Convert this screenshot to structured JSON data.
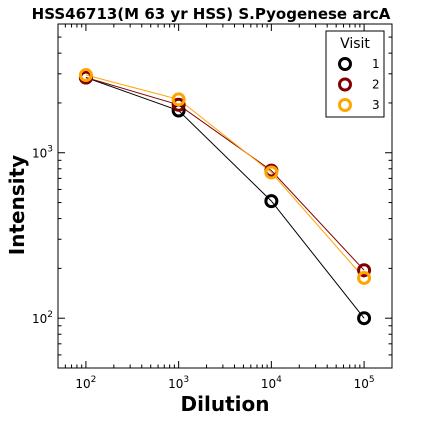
{
  "chart_data": {
    "type": "line",
    "title": "HSS46713(M 63 yr HSS) S.Pyogenese arcA",
    "xlabel": "Dilution",
    "ylabel": "Intensity",
    "xscale": "log",
    "yscale": "log",
    "xlim": [
      50,
      200000
    ],
    "ylim": [
      50,
      6000
    ],
    "x": [
      100,
      1000,
      10000,
      100000
    ],
    "xticks": [
      {
        "value": 100,
        "base": "10",
        "exp": "2"
      },
      {
        "value": 1000,
        "base": "10",
        "exp": "3"
      },
      {
        "value": 10000,
        "base": "10",
        "exp": "4"
      },
      {
        "value": 100000,
        "base": "10",
        "exp": "5"
      }
    ],
    "yticks": [
      {
        "value": 100,
        "base": "10",
        "exp": "2"
      },
      {
        "value": 1000,
        "base": "10",
        "exp": "3"
      }
    ],
    "legend": {
      "title": "Visit",
      "position": "top-right"
    },
    "grid": false,
    "series": [
      {
        "name": "1",
        "color": "#000000",
        "values": [
          2850,
          1800,
          510,
          100
        ]
      },
      {
        "name": "2",
        "color": "#800000",
        "values": [
          2850,
          1950,
          780,
          195
        ]
      },
      {
        "name": "3",
        "color": "#FFA500",
        "values": [
          2950,
          2100,
          760,
          175
        ]
      }
    ]
  }
}
